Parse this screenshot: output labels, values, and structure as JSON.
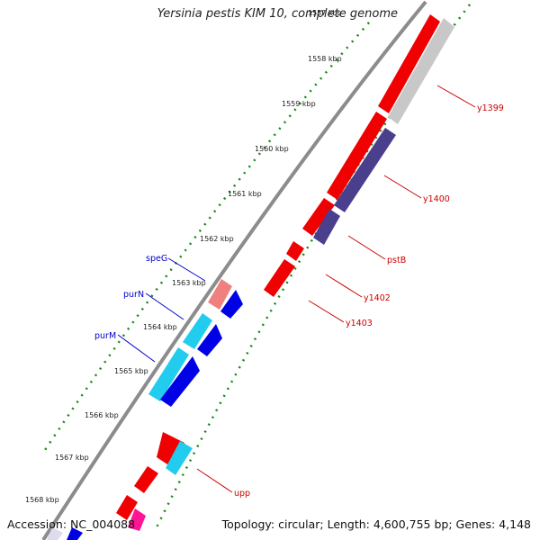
{
  "title": "Yersinia pestis KIM 10, complete genome",
  "footer": {
    "accession": "Accession: NC_004088",
    "topology": "Topology: circular; Length: 4,600,755 bp; Genes: 4,148"
  },
  "ticks": [
    "1557 kbp",
    "1558 kbp",
    "1559 kbp",
    "1560 kbp",
    "1561 kbp",
    "1562 kbp",
    "1563 kbp",
    "1564 kbp",
    "1565 kbp",
    "1566 kbp",
    "1567 kbp",
    "1568 kbp"
  ],
  "genes_right": [
    {
      "label": "y1399",
      "color": "#cc0000"
    },
    {
      "label": "y1400",
      "color": "#cc0000"
    },
    {
      "label": "pstB",
      "color": "#cc0000"
    },
    {
      "label": "y1402",
      "color": "#cc0000"
    },
    {
      "label": "y1403",
      "color": "#cc0000"
    },
    {
      "label": "upp",
      "color": "#cc0000"
    }
  ],
  "genes_left": [
    {
      "label": "speG",
      "color": "#0000cc"
    },
    {
      "label": "purN",
      "color": "#0000cc"
    },
    {
      "label": "purM",
      "color": "#0000cc"
    }
  ],
  "colors": {
    "backbone": "#8c8c8c",
    "tick": "#138a13",
    "red": "#f00000",
    "grey": "#c8c8c8",
    "purple": "#4a3f8c",
    "blue": "#0000e6",
    "cyan": "#22ccee",
    "pink": "#f08080",
    "magenta": "#ff1493"
  }
}
